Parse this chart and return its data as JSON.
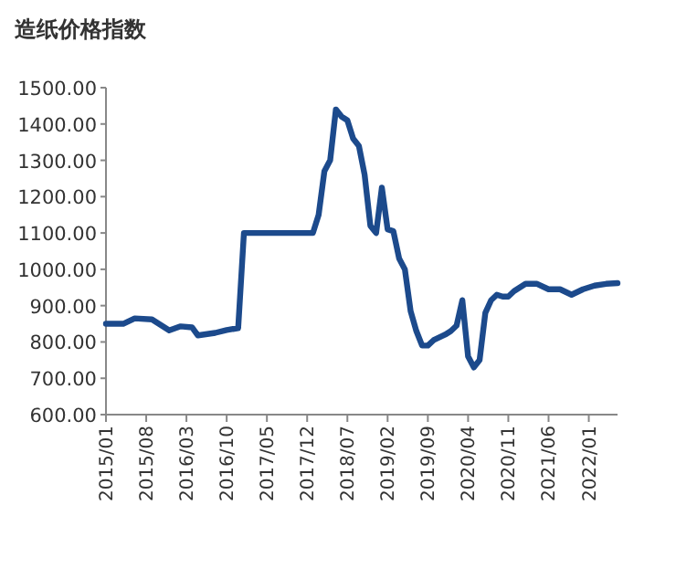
{
  "chart_data": {
    "type": "line",
    "title": "造纸价格指数",
    "x": [
      "2015-01",
      "2015-04",
      "2015-06",
      "2015-09",
      "2015-12",
      "2016-02",
      "2016-04",
      "2016-05",
      "2016-08",
      "2016-10",
      "2016-12",
      "2017-01",
      "2018-01",
      "2018-02",
      "2018-03",
      "2018-04",
      "2018-05",
      "2018-06",
      "2018-07",
      "2018-08",
      "2018-09",
      "2018-10",
      "2018-11",
      "2018-12",
      "2019-01",
      "2019-02",
      "2019-03",
      "2019-04",
      "2019-05",
      "2019-06",
      "2019-07",
      "2019-08",
      "2019-09",
      "2019-10",
      "2019-12",
      "2020-01",
      "2020-02",
      "2020-03",
      "2020-04",
      "2020-05",
      "2020-06",
      "2020-07",
      "2020-08",
      "2020-09",
      "2020-10",
      "2020-11",
      "2020-12",
      "2021-02",
      "2021-04",
      "2021-06",
      "2021-08",
      "2021-10",
      "2021-12",
      "2022-02",
      "2022-04",
      "2022-06"
    ],
    "series": [
      {
        "color": "#1c4a8c",
        "values": [
          850,
          850,
          865,
          862,
          832,
          843,
          840,
          818,
          825,
          833,
          838,
          1100,
          1100,
          1150,
          1270,
          1300,
          1440,
          1420,
          1410,
          1360,
          1340,
          1260,
          1120,
          1100,
          1225,
          1110,
          1105,
          1030,
          1000,
          885,
          830,
          790,
          790,
          805,
          820,
          830,
          845,
          915,
          760,
          730,
          750,
          880,
          915,
          930,
          925,
          925,
          940,
          960,
          960,
          945,
          945,
          930,
          945,
          955,
          960,
          962
        ]
      }
    ],
    "xlim": [
      "2015-01",
      "2022-06"
    ],
    "xticks": [
      {
        "value": "2015-01",
        "label": "2015/01"
      },
      {
        "value": "2015-08",
        "label": "2015/08"
      },
      {
        "value": "2016-03",
        "label": "2016/03"
      },
      {
        "value": "2016-10",
        "label": "2016/10"
      },
      {
        "value": "2017-05",
        "label": "2017/05"
      },
      {
        "value": "2017-12",
        "label": "2017/12"
      },
      {
        "value": "2018-07",
        "label": "2018/07"
      },
      {
        "value": "2019-02",
        "label": "2019/02"
      },
      {
        "value": "2019-09",
        "label": "2019/09"
      },
      {
        "value": "2020-04",
        "label": "2020/04"
      },
      {
        "value": "2020-11",
        "label": "2020/11"
      },
      {
        "value": "2021-06",
        "label": "2021/06"
      },
      {
        "value": "2022-01",
        "label": "2022/01"
      }
    ],
    "ylim": [
      600,
      1500
    ],
    "yticks": [
      {
        "value": 600,
        "label": "600.00"
      },
      {
        "value": 700,
        "label": "700.00"
      },
      {
        "value": 800,
        "label": "800.00"
      },
      {
        "value": 900,
        "label": "900.00"
      },
      {
        "value": 1000,
        "label": "1000.00"
      },
      {
        "value": 1100,
        "label": "1100.00"
      },
      {
        "value": 1200,
        "label": "1200.00"
      },
      {
        "value": 1300,
        "label": "1300.00"
      },
      {
        "value": 1400,
        "label": "1400.00"
      },
      {
        "value": 1500,
        "label": "1500.00"
      }
    ],
    "grid": false,
    "marker": "none",
    "line_style": "solid"
  }
}
